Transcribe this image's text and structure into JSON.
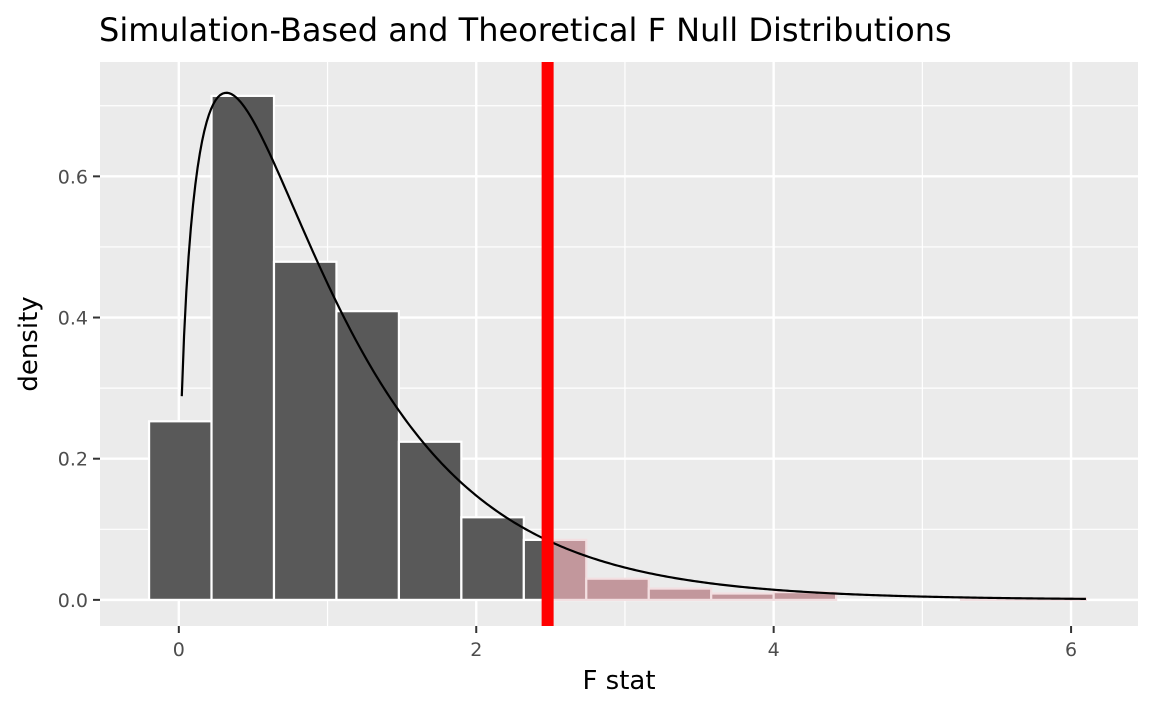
{
  "chart_data": {
    "type": "bar",
    "title": "Simulation-Based and Theoretical F Null Distributions",
    "xlabel": "F stat",
    "ylabel": "density",
    "xlim": [
      -0.53,
      6.45
    ],
    "ylim": [
      -0.037,
      0.762
    ],
    "x_ticks": [
      0,
      2,
      4,
      6
    ],
    "x_tick_labels": [
      "0",
      "2",
      "4",
      "6"
    ],
    "y_ticks": [
      0.0,
      0.2,
      0.4,
      0.6
    ],
    "y_tick_labels": [
      "0.0",
      "0.2",
      "0.4",
      "0.6"
    ],
    "grid": true,
    "legend": "none",
    "histogram": {
      "bin_width": 0.42,
      "bins": [
        {
          "x0": -0.2,
          "x1": 0.22,
          "density": 0.253,
          "shaded": false
        },
        {
          "x0": 0.22,
          "x1": 0.64,
          "density": 0.714,
          "shaded": false
        },
        {
          "x0": 0.64,
          "x1": 1.06,
          "density": 0.479,
          "shaded": false
        },
        {
          "x0": 1.06,
          "x1": 1.48,
          "density": 0.409,
          "shaded": false
        },
        {
          "x0": 1.48,
          "x1": 1.9,
          "density": 0.224,
          "shaded": false
        },
        {
          "x0": 1.9,
          "x1": 2.32,
          "density": 0.117,
          "shaded": false
        },
        {
          "x0": 2.32,
          "x1": 2.48,
          "density": 0.085,
          "shaded": false
        },
        {
          "x0": 2.48,
          "x1": 2.74,
          "density": 0.085,
          "shaded": true
        },
        {
          "x0": 2.74,
          "x1": 3.16,
          "density": 0.03,
          "shaded": true
        },
        {
          "x0": 3.16,
          "x1": 3.58,
          "density": 0.016,
          "shaded": true
        },
        {
          "x0": 3.58,
          "x1": 4.0,
          "density": 0.009,
          "shaded": true
        },
        {
          "x0": 4.0,
          "x1": 4.42,
          "density": 0.011,
          "shaded": true
        },
        {
          "x0": 4.42,
          "x1": 4.84,
          "density": 0.0,
          "shaded": true
        },
        {
          "x0": 4.84,
          "x1": 5.26,
          "density": 0.0,
          "shaded": true
        },
        {
          "x0": 5.26,
          "x1": 5.68,
          "density": 0.002,
          "shaded": true
        },
        {
          "x0": 5.68,
          "x1": 6.1,
          "density": 0.002,
          "shaded": true
        }
      ]
    },
    "theoretical_f": {
      "df1": 3,
      "df2": 46
    },
    "observed_stat": 2.48,
    "colors": {
      "panel": "#ebebeb",
      "grid": "#ffffff",
      "bar_fill": "#595959",
      "bar_outline": "#ffffff",
      "shade_fill": "#c2979c",
      "shade_outline": "#f3dfe1",
      "curve": "#000000",
      "observed_line": "#ff0000"
    }
  }
}
